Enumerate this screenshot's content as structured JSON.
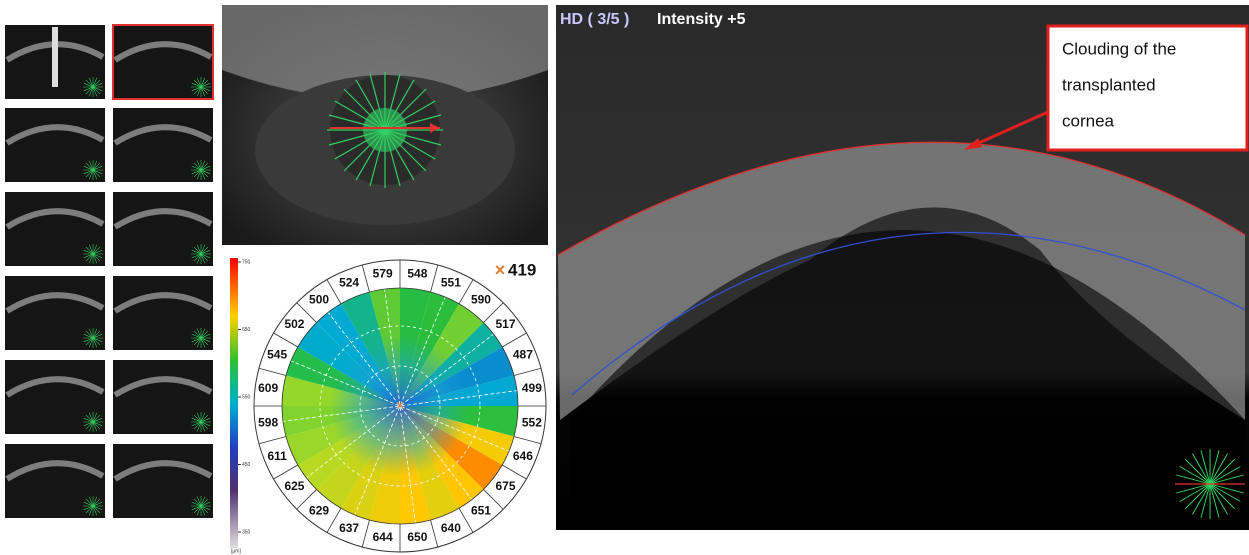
{
  "oct_scan": {
    "mode": "HD ( 3/5 )",
    "intensity": "Intensity +5"
  },
  "annotation": {
    "lines": [
      "Clouding of the",
      "transplanted",
      "cornea"
    ]
  },
  "thickness_map": {
    "center_value": 419,
    "sector_values": [
      579,
      548,
      551,
      590,
      517,
      487,
      499,
      552,
      646,
      675,
      651,
      640,
      650,
      644,
      637,
      629,
      625,
      611,
      598,
      609,
      545,
      502,
      500,
      524
    ],
    "scale_ticks": [
      750,
      650,
      550,
      450,
      350
    ],
    "scale_unit": "[µm]"
  }
}
